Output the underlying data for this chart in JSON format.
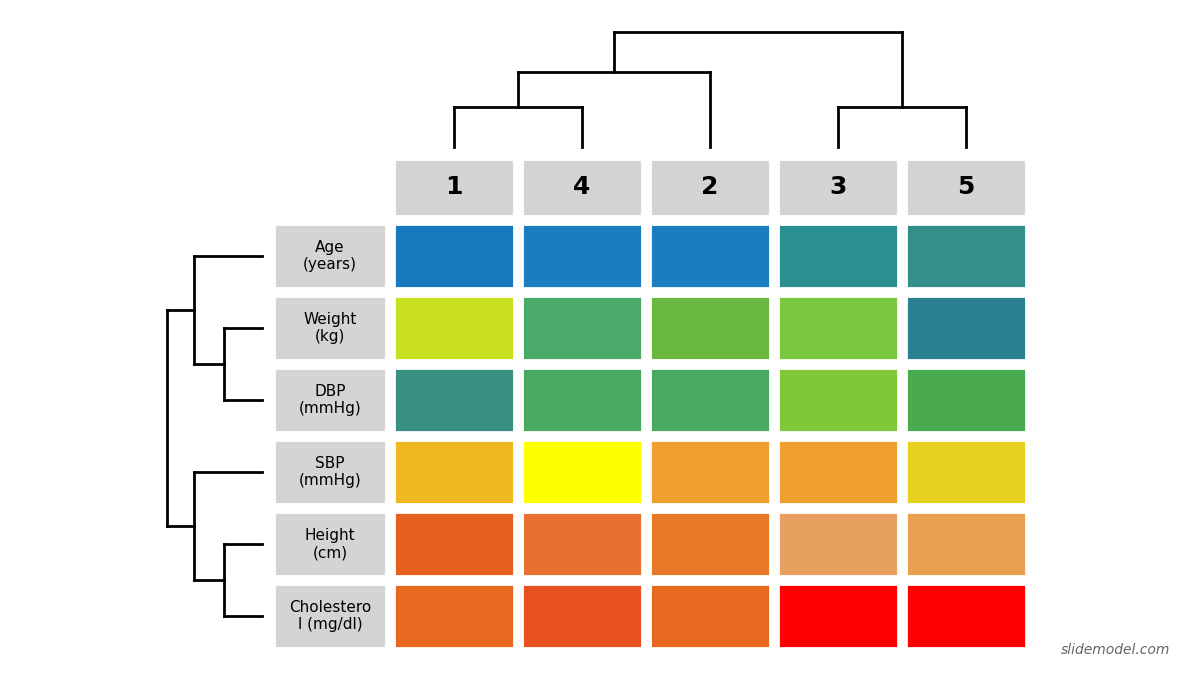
{
  "col_labels": [
    "1",
    "4",
    "2",
    "3",
    "5"
  ],
  "row_labels": [
    "Age\n(years)",
    "Weight\n(kg)",
    "DBP\n(mmHg)",
    "SBP\n(mmHg)",
    "Height\n(cm)",
    "Cholestero\nl (mg/dl)"
  ],
  "cell_colors": [
    [
      "#1878be",
      "#1a7dbf",
      "#1a7dbf",
      "#2a8f90",
      "#338f8a"
    ],
    [
      "#c8e020",
      "#4aaa6a",
      "#6ab840",
      "#7ac840",
      "#2a8090"
    ],
    [
      "#3a9080",
      "#4aaa60",
      "#4aaa60",
      "#80c838",
      "#4aaa50"
    ],
    [
      "#f0b820",
      "#ffff00",
      "#f0a030",
      "#f0a030",
      "#e8d020"
    ],
    [
      "#e86020",
      "#e87030",
      "#e87828",
      "#e8a060",
      "#e8a050"
    ],
    [
      "#e86820",
      "#e85020",
      "#e86820",
      "#ff0000",
      "#ff0000"
    ]
  ],
  "header_bg": "#d4d4d4",
  "row_label_bg": "#d4d4d4",
  "background_color": "#ffffff",
  "watermark": "slidemodel.com"
}
